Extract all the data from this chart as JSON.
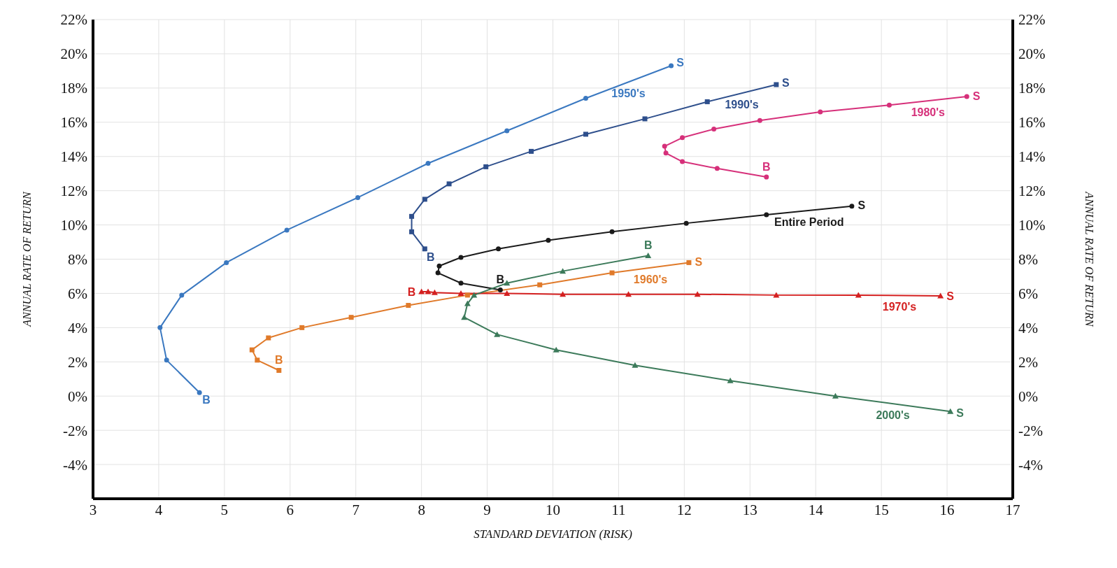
{
  "chart_data": {
    "type": "line",
    "xlabel": "STANDARD DEVIATION (RISK)",
    "ylabel": "ANNUAL RATE OF RETURN",
    "y2label": "ANNUAL RATE OF RETURN",
    "xlim": [
      3,
      17
    ],
    "xticks": [
      3,
      4,
      5,
      6,
      7,
      8,
      9,
      10,
      11,
      12,
      13,
      14,
      15,
      16,
      17
    ],
    "ylim": [
      -6,
      22
    ],
    "yticks": [
      {
        "value": -4,
        "label": "-4%"
      },
      {
        "value": -2,
        "label": "-2%"
      },
      {
        "value": 0,
        "label": "0%"
      },
      {
        "value": 2,
        "label": "2%"
      },
      {
        "value": 4,
        "label": "4%"
      },
      {
        "value": 6,
        "label": "6%"
      },
      {
        "value": 8,
        "label": "8%"
      },
      {
        "value": 10,
        "label": "10%"
      },
      {
        "value": 12,
        "label": "12%"
      },
      {
        "value": 14,
        "label": "14%"
      },
      {
        "value": 16,
        "label": "16%"
      },
      {
        "value": 18,
        "label": "18%"
      },
      {
        "value": 20,
        "label": "20%"
      },
      {
        "value": 22,
        "label": "22%"
      }
    ],
    "y2lim": [
      -6,
      22
    ],
    "y2ticks": [
      {
        "value": -4,
        "label": "-4%"
      },
      {
        "value": -2,
        "label": "-2%"
      },
      {
        "value": 0,
        "label": "0%"
      },
      {
        "value": 2,
        "label": "2%"
      },
      {
        "value": 4,
        "label": "4%"
      },
      {
        "value": 6,
        "label": "6%"
      },
      {
        "value": 8,
        "label": "8%"
      },
      {
        "value": 10,
        "label": "10%"
      },
      {
        "value": 12,
        "label": "12%"
      },
      {
        "value": 14,
        "label": "14%"
      },
      {
        "value": 16,
        "label": "16%"
      },
      {
        "value": 18,
        "label": "18%"
      },
      {
        "value": 20,
        "label": "20%"
      },
      {
        "value": 22,
        "label": "22%"
      }
    ],
    "grid": true,
    "line_style": "solid",
    "series": [
      {
        "name": "1950's",
        "color": "#3a78c0",
        "marker": "circle",
        "x": [
          4.62,
          4.12,
          4.02,
          4.35,
          5.03,
          5.95,
          7.03,
          8.1,
          9.3,
          10.5,
          11.8
        ],
        "values": [
          0.2,
          2.1,
          4.0,
          5.9,
          7.8,
          9.7,
          11.6,
          13.6,
          15.5,
          17.4,
          19.3
        ]
      },
      {
        "name": "1990's",
        "color": "#2e4f8c",
        "marker": "square",
        "x": [
          8.05,
          7.85,
          7.85,
          8.05,
          8.42,
          8.98,
          9.67,
          10.5,
          11.4,
          12.35,
          13.4
        ],
        "values": [
          8.6,
          9.6,
          10.5,
          11.5,
          12.4,
          13.4,
          14.3,
          15.3,
          16.2,
          17.2,
          18.2
        ]
      },
      {
        "name": "1980's",
        "color": "#d6307a",
        "marker": "circle",
        "x": [
          13.25,
          12.5,
          11.97,
          11.72,
          11.7,
          11.97,
          12.45,
          13.15,
          14.07,
          15.12,
          16.3
        ],
        "values": [
          12.8,
          13.3,
          13.7,
          14.2,
          14.6,
          15.1,
          15.6,
          16.1,
          16.6,
          17.0,
          17.5
        ]
      },
      {
        "name": "Entire Period",
        "color": "#1a1a1a",
        "marker": "circle",
        "x": [
          9.2,
          8.6,
          8.25,
          8.27,
          8.6,
          9.17,
          9.93,
          10.9,
          12.03,
          13.25,
          14.55
        ],
        "values": [
          6.2,
          6.6,
          7.2,
          7.6,
          8.1,
          8.6,
          9.1,
          9.6,
          10.1,
          10.6,
          11.1
        ]
      },
      {
        "name": "1960's",
        "color": "#e07a2a",
        "marker": "square",
        "x": [
          5.83,
          5.5,
          5.42,
          5.67,
          6.18,
          6.93,
          7.8,
          8.7,
          9.8,
          10.9,
          12.07
        ],
        "values": [
          1.5,
          2.1,
          2.7,
          3.4,
          4.0,
          4.6,
          5.3,
          5.9,
          6.5,
          7.2,
          7.8
        ]
      },
      {
        "name": "1970's",
        "color": "#d42020",
        "marker": "triangle",
        "x": [
          8.0,
          8.1,
          8.2,
          8.6,
          9.3,
          10.15,
          11.15,
          12.2,
          13.4,
          14.65,
          15.9
        ],
        "values": [
          6.1,
          6.1,
          6.05,
          6.0,
          6.0,
          5.95,
          5.95,
          5.95,
          5.9,
          5.9,
          5.85
        ]
      },
      {
        "name": "2000's",
        "color": "#3c7a5a",
        "marker": "triangle",
        "x": [
          11.45,
          10.15,
          9.3,
          8.8,
          8.7,
          8.65,
          9.15,
          10.05,
          11.25,
          12.7,
          14.3,
          16.05
        ],
        "values": [
          8.2,
          7.3,
          6.6,
          5.9,
          5.4,
          4.6,
          3.6,
          2.7,
          1.8,
          0.9,
          0.0,
          -0.9
        ]
      }
    ],
    "annotations": [
      {
        "text": "B",
        "x": 4.62,
        "y": 0.2
      },
      {
        "text": "S",
        "x": 11.8,
        "y": 19.3
      },
      {
        "text": "B",
        "x": 8.05,
        "y": 8.6
      },
      {
        "text": "S",
        "x": 13.4,
        "y": 18.2
      },
      {
        "text": "B",
        "x": 13.25,
        "y": 12.8
      },
      {
        "text": "S",
        "x": 16.3,
        "y": 17.5
      },
      {
        "text": "B",
        "x": 9.2,
        "y": 6.2
      },
      {
        "text": "S",
        "x": 14.55,
        "y": 11.1
      },
      {
        "text": "B",
        "x": 5.83,
        "y": 1.5
      },
      {
        "text": "S",
        "x": 12.07,
        "y": 7.8
      },
      {
        "text": "B",
        "x": 8.0,
        "y": 6.1
      },
      {
        "text": "S",
        "x": 15.9,
        "y": 5.85
      },
      {
        "text": "B",
        "x": 11.45,
        "y": 8.2
      },
      {
        "text": "S",
        "x": 16.05,
        "y": -0.9
      }
    ]
  }
}
